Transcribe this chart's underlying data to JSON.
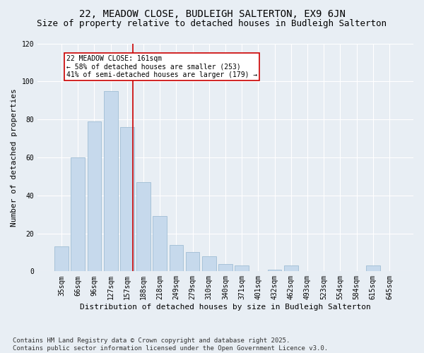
{
  "title1": "22, MEADOW CLOSE, BUDLEIGH SALTERTON, EX9 6JN",
  "title2": "Size of property relative to detached houses in Budleigh Salterton",
  "xlabel": "Distribution of detached houses by size in Budleigh Salterton",
  "ylabel": "Number of detached properties",
  "categories": [
    "35sqm",
    "66sqm",
    "96sqm",
    "127sqm",
    "157sqm",
    "188sqm",
    "218sqm",
    "249sqm",
    "279sqm",
    "310sqm",
    "340sqm",
    "371sqm",
    "401sqm",
    "432sqm",
    "462sqm",
    "493sqm",
    "523sqm",
    "554sqm",
    "584sqm",
    "615sqm",
    "645sqm"
  ],
  "values": [
    13,
    60,
    79,
    95,
    76,
    47,
    29,
    14,
    10,
    8,
    4,
    3,
    0,
    1,
    3,
    0,
    0,
    0,
    0,
    3,
    0
  ],
  "bar_color": "#c6d9ec",
  "bar_edge_color": "#a0bdd4",
  "vline_color": "#cc0000",
  "vline_index": 4.35,
  "annotation_text": "22 MEADOW CLOSE: 161sqm\n← 58% of detached houses are smaller (253)\n41% of semi-detached houses are larger (179) →",
  "annotation_box_facecolor": "#ffffff",
  "annotation_box_edgecolor": "#cc0000",
  "ylim": [
    0,
    120
  ],
  "yticks": [
    0,
    20,
    40,
    60,
    80,
    100,
    120
  ],
  "footnote": "Contains HM Land Registry data © Crown copyright and database right 2025.\nContains public sector information licensed under the Open Government Licence v3.0.",
  "background_color": "#e8eef4",
  "plot_bg_color": "#e8eef4",
  "title1_fontsize": 10,
  "title2_fontsize": 9,
  "xlabel_fontsize": 8,
  "ylabel_fontsize": 8,
  "tick_fontsize": 7,
  "annotation_fontsize": 7,
  "footnote_fontsize": 6.5
}
